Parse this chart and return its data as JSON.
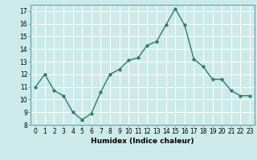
{
  "x": [
    0,
    1,
    2,
    3,
    4,
    5,
    6,
    7,
    8,
    9,
    10,
    11,
    12,
    13,
    14,
    15,
    16,
    17,
    18,
    19,
    20,
    21,
    22,
    23
  ],
  "y": [
    11.0,
    12.0,
    10.7,
    10.3,
    9.0,
    8.4,
    8.9,
    10.6,
    12.0,
    12.4,
    13.1,
    13.3,
    14.3,
    14.6,
    15.9,
    17.2,
    15.9,
    13.2,
    12.6,
    11.6,
    11.6,
    10.7,
    10.3,
    10.3
  ],
  "line_color": "#2e7d6e",
  "marker_color": "#2e7d6e",
  "bg_color": "#cceaea",
  "grid_color": "#ffffff",
  "xlabel": "Humidex (Indice chaleur)",
  "ylim": [
    8,
    17.5
  ],
  "yticks": [
    8,
    9,
    10,
    11,
    12,
    13,
    14,
    15,
    16,
    17
  ],
  "xticks": [
    0,
    1,
    2,
    3,
    4,
    5,
    6,
    7,
    8,
    9,
    10,
    11,
    12,
    13,
    14,
    15,
    16,
    17,
    18,
    19,
    20,
    21,
    22,
    23
  ],
  "linewidth": 1.0,
  "markersize": 2.5,
  "tick_fontsize": 5.5,
  "xlabel_fontsize": 6.5
}
